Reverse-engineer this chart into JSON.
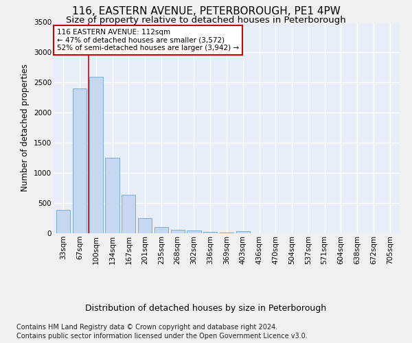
{
  "title": "116, EASTERN AVENUE, PETERBOROUGH, PE1 4PW",
  "subtitle": "Size of property relative to detached houses in Peterborough",
  "xlabel": "Distribution of detached houses by size in Peterborough",
  "ylabel": "Number of detached properties",
  "footer_line1": "Contains HM Land Registry data © Crown copyright and database right 2024.",
  "footer_line2": "Contains public sector information licensed under the Open Government Licence v3.0.",
  "bar_labels": [
    "33sqm",
    "67sqm",
    "100sqm",
    "134sqm",
    "167sqm",
    "201sqm",
    "235sqm",
    "268sqm",
    "302sqm",
    "336sqm",
    "369sqm",
    "403sqm",
    "436sqm",
    "470sqm",
    "504sqm",
    "537sqm",
    "571sqm",
    "604sqm",
    "638sqm",
    "672sqm",
    "705sqm"
  ],
  "bar_values": [
    390,
    2400,
    2600,
    1250,
    640,
    250,
    100,
    55,
    40,
    25,
    10,
    35,
    5,
    3,
    2,
    2,
    1,
    1,
    1,
    1,
    1
  ],
  "bar_color": "#c5d8f0",
  "bar_edge_color": "#7aadd4",
  "vline_color": "#cc0000",
  "vline_pos": 1.55,
  "annotation_text": "116 EASTERN AVENUE: 112sqm\n← 47% of detached houses are smaller (3,572)\n52% of semi-detached houses are larger (3,942) →",
  "annotation_box_facecolor": "#ffffff",
  "annotation_box_edgecolor": "#cc0000",
  "ylim": [
    0,
    3500
  ],
  "yticks": [
    0,
    500,
    1000,
    1500,
    2000,
    2500,
    3000,
    3500
  ],
  "plot_bg_color": "#e8eef8",
  "fig_bg_color": "#f0f0f0",
  "grid_color": "#ffffff",
  "title_fontsize": 11,
  "subtitle_fontsize": 9.5,
  "xlabel_fontsize": 9,
  "ylabel_fontsize": 8.5,
  "tick_fontsize": 7.5,
  "annotation_fontsize": 7.5,
  "footer_fontsize": 7
}
